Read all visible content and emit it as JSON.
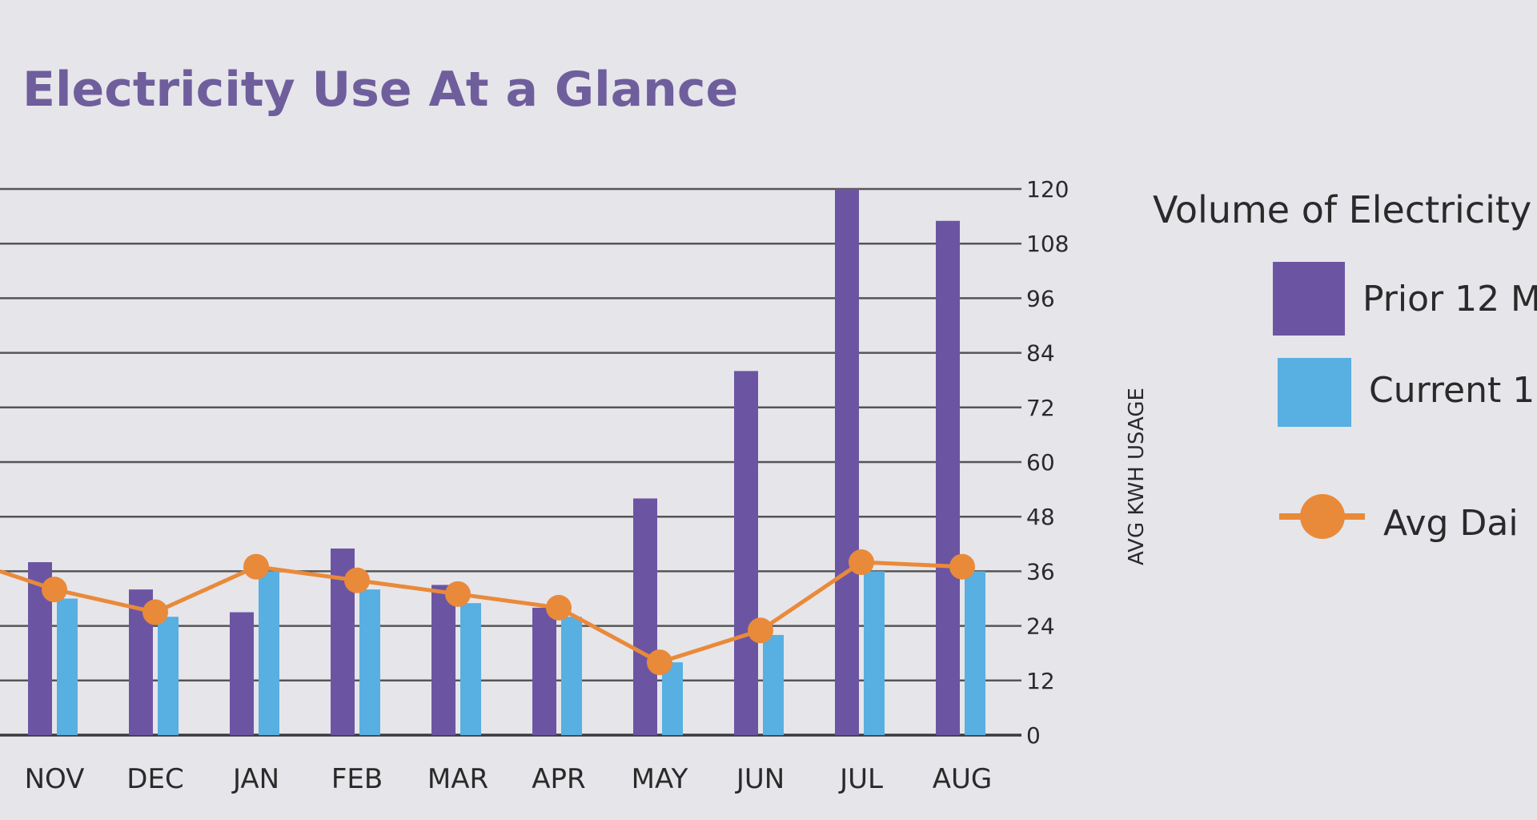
{
  "page": {
    "title": "Electricity Use At a Glance"
  },
  "legend": {
    "title": "Volume of Electricity",
    "items": [
      {
        "label": "Prior 12 M",
        "icon": "purple-square",
        "color": "#6b55a3"
      },
      {
        "label": "Current 1",
        "icon": "blue-square",
        "color": "#58afe1"
      },
      {
        "label": "Avg Dai",
        "icon": "orange-line-dot",
        "color": "#e98a3a"
      }
    ]
  },
  "chart_data": {
    "type": "bar",
    "title": "Electricity Use At a Glance",
    "categories": [
      "NOV",
      "DEC",
      "JAN",
      "FEB",
      "MAR",
      "APR",
      "MAY",
      "JUN",
      "JUL",
      "AUG"
    ],
    "series": [
      {
        "name": "Prior 12 M",
        "type": "bar",
        "color": "#6b55a3",
        "values": [
          38,
          32,
          27,
          41,
          33,
          28,
          52,
          80,
          120,
          113
        ]
      },
      {
        "name": "Current 1",
        "type": "bar",
        "color": "#58afe1",
        "values": [
          30,
          26,
          36,
          32,
          29,
          26,
          16,
          22,
          36,
          36
        ]
      },
      {
        "name": "Avg Dai",
        "type": "line",
        "color": "#e98a3a",
        "values": [
          32,
          27,
          37,
          34,
          31,
          28,
          16,
          23,
          38,
          37
        ]
      }
    ],
    "ylabel": "AVG KWH USAGE",
    "ylim": [
      0,
      120
    ],
    "yticks": [
      0,
      12,
      24,
      36,
      48,
      60,
      72,
      84,
      96,
      108,
      120
    ],
    "grid": true,
    "legend_position": "right"
  }
}
